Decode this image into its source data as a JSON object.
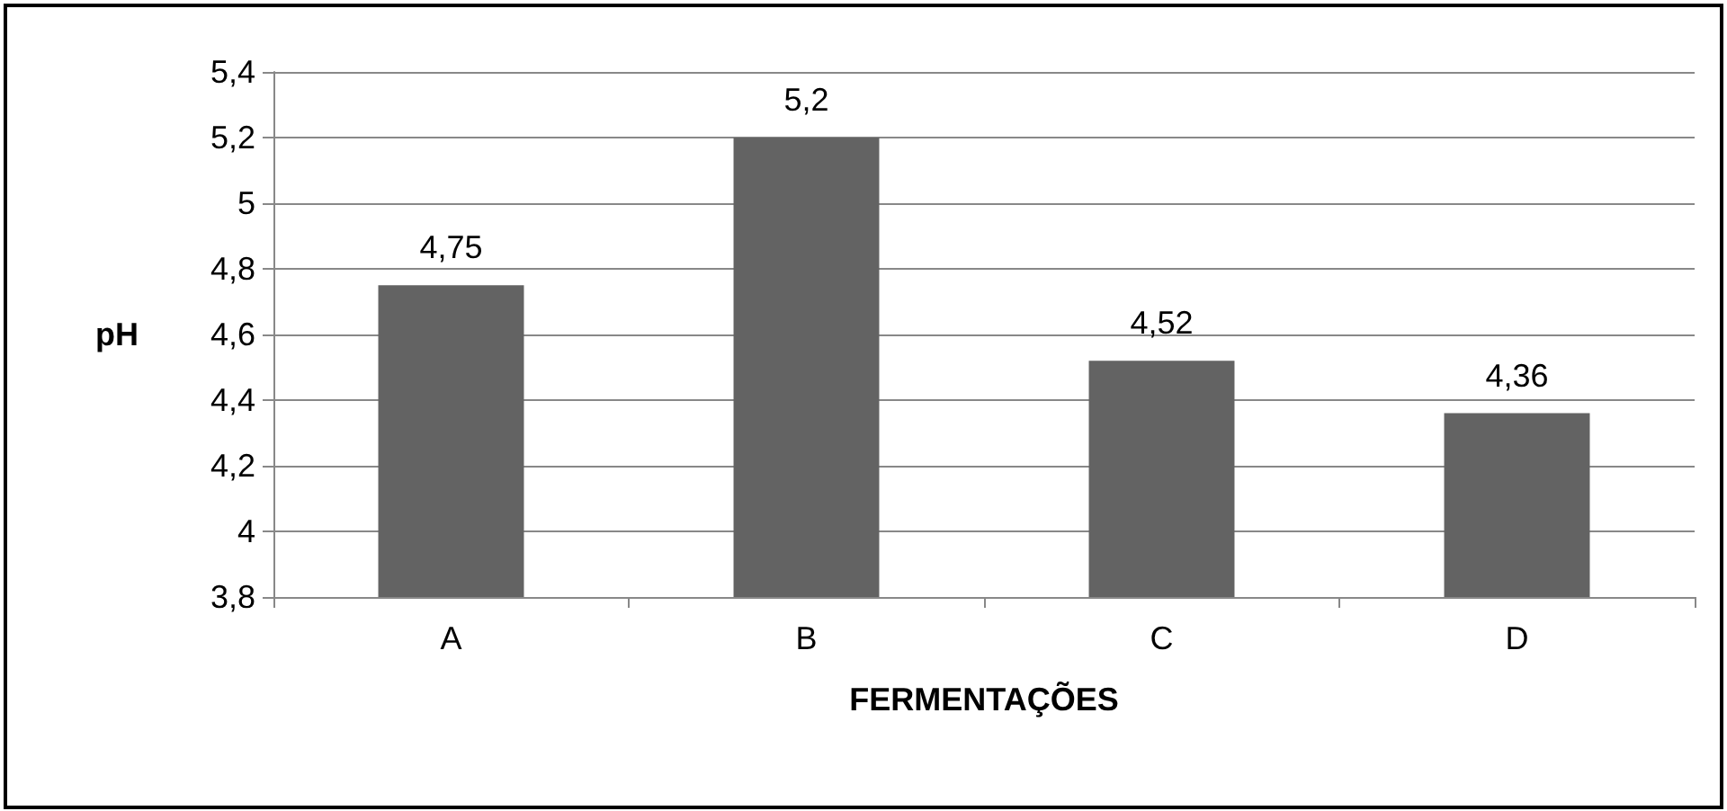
{
  "chart_data": {
    "type": "bar",
    "xlabel": "FERMENTAÇÕES",
    "ylabel": "pH",
    "categories": [
      "A",
      "B",
      "C",
      "D"
    ],
    "values": [
      4.75,
      5.2,
      4.52,
      4.36
    ],
    "value_labels": [
      "4,75",
      "5,2",
      "4,52",
      "4,36"
    ],
    "color": "#636363",
    "ylim": [
      3.8,
      5.4
    ],
    "yticks": [
      {
        "value": 3.8,
        "label": "3,8"
      },
      4,
      {
        "value": 4.2,
        "label": "4,2"
      },
      {
        "value": 4.4,
        "label": "4,4"
      },
      {
        "value": 4.6,
        "label": "4,6"
      },
      {
        "value": 4.8,
        "label": "4,8"
      },
      5,
      {
        "value": 5.2,
        "label": "5,2"
      },
      {
        "value": 5.4,
        "label": "5,4"
      }
    ],
    "grid": "y"
  }
}
